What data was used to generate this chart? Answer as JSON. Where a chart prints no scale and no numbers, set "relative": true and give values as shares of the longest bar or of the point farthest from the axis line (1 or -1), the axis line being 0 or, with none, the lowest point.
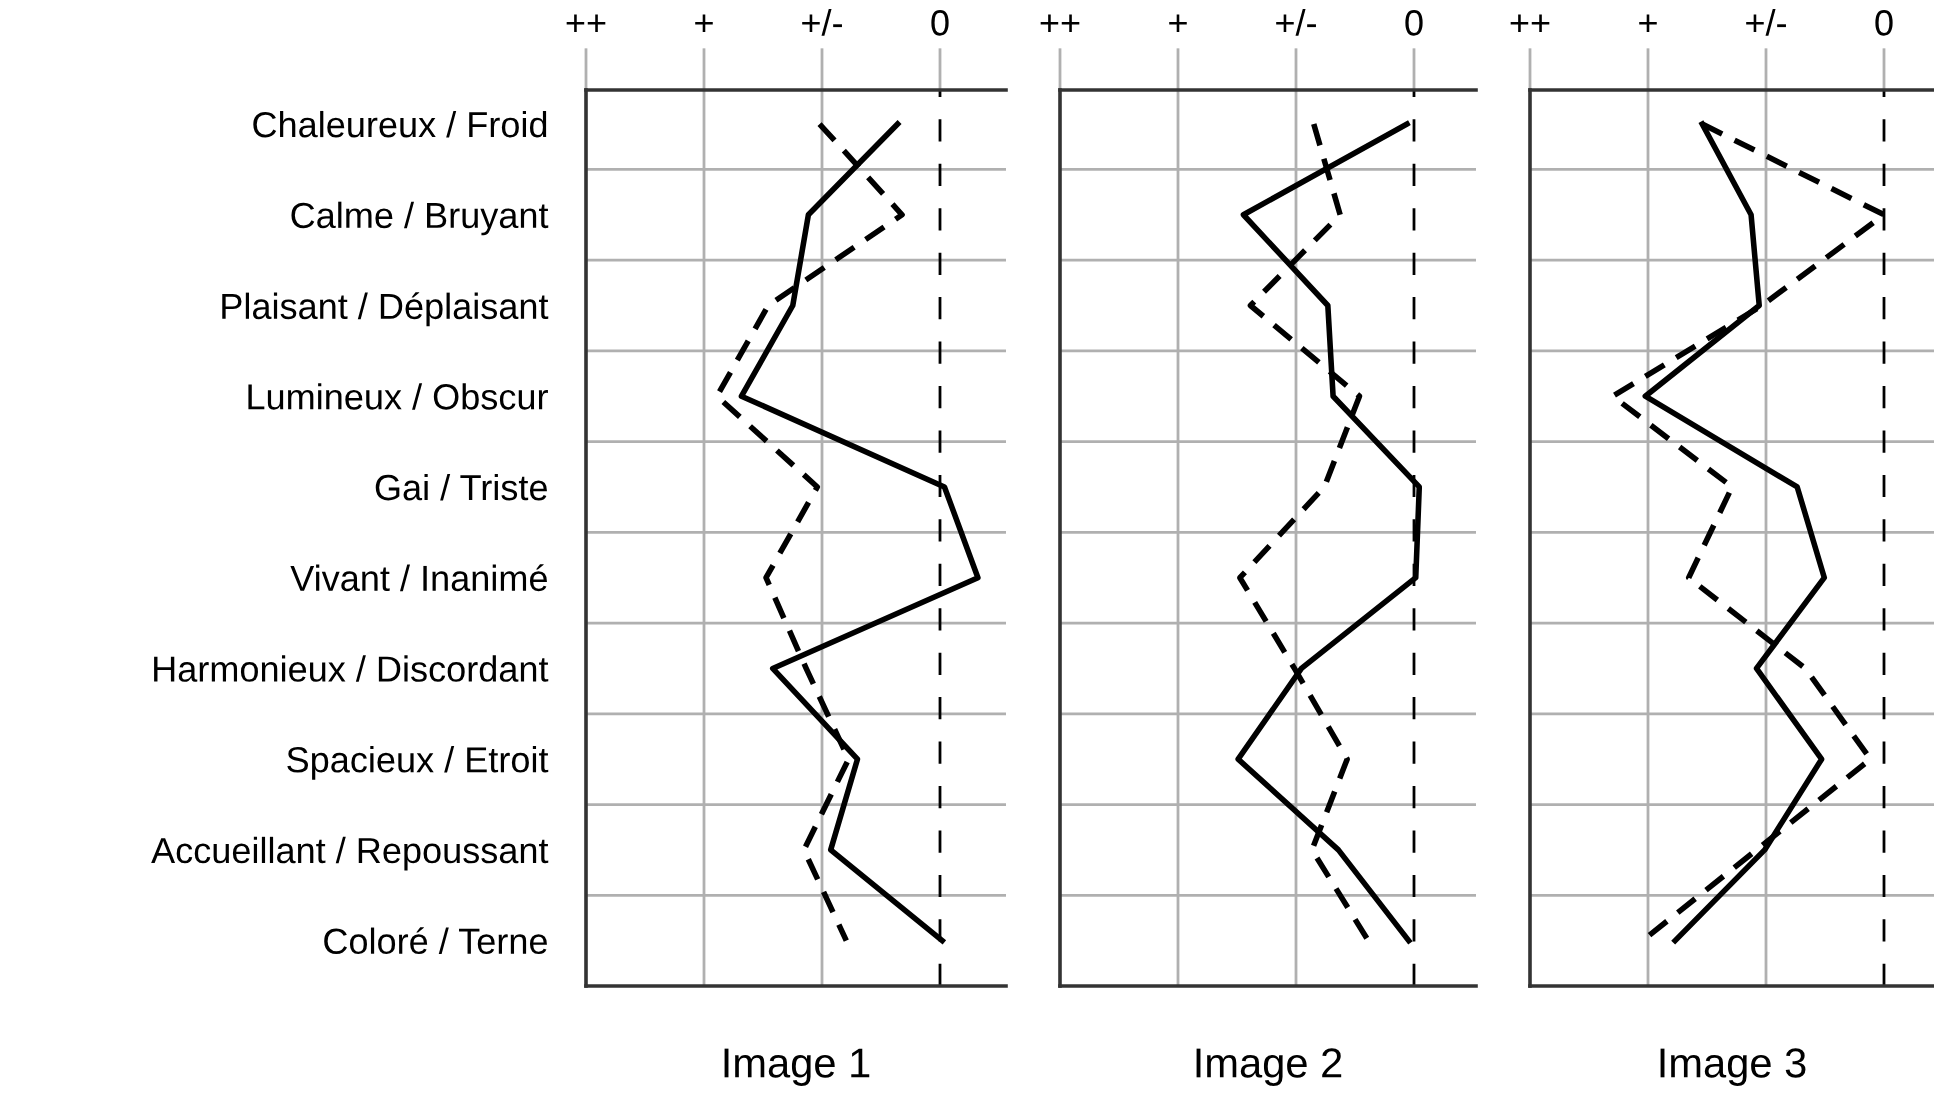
{
  "chart_data": [
    {
      "type": "line",
      "orientation": "horizontal",
      "relative": true,
      "categories": [
        "Chaleureux / Froid",
        "Calme / Bruyant",
        "Plaisant / Déplaisant",
        "Lumineux / Obscur",
        "Gai / Triste",
        "Vivant / Inanimé",
        "Harmonieux / Discordant",
        "Spacieux / Etroit",
        "Accueillant / Repoussant",
        "Coloré / Terne"
      ],
      "tick_labels": "y",
      "annotations": [
        "++",
        "+",
        "+/-",
        "0"
      ],
      "xlabel": "Image 1",
      "grid": true,
      "ref_lines": [
        {
          "axis": "x",
          "value": 0,
          "color": "#000000",
          "line_style": "dashed"
        }
      ],
      "series": [
        {
          "color": "#000000",
          "line_style": "solid",
          "values": [
            -0.19,
            -0.59,
            -0.66,
            -0.89,
            0.02,
            0.17,
            -0.75,
            -0.37,
            -0.49,
            0.01
          ]
        },
        {
          "color": "#000000",
          "line_style": "dashed",
          "values": [
            -0.54,
            -0.17,
            -0.77,
            -1,
            -0.55,
            -0.78,
            -0.6,
            -0.41,
            -0.61,
            -0.42
          ]
        }
      ]
    },
    {
      "type": "line",
      "orientation": "horizontal",
      "relative": true,
      "categories": [
        null,
        null,
        null,
        null,
        null,
        null,
        null,
        null,
        null,
        null
      ],
      "tick_labels": false,
      "annotations": [
        "++",
        "+",
        "+/-",
        "0"
      ],
      "xlabel": "Image 2",
      "grid": true,
      "ref_lines": [
        {
          "axis": "x",
          "value": 0,
          "color": "#000000",
          "line_style": "dashed"
        }
      ],
      "series": [
        {
          "color": "#000000",
          "line_style": "solid",
          "values": [
            -0.04,
            -0.97,
            -0.49,
            -0.46,
            0.03,
            0.01,
            -0.64,
            -1,
            -0.43,
            -0.03
          ]
        },
        {
          "color": "#000000",
          "line_style": "dashed",
          "values": [
            -0.57,
            -0.42,
            -0.93,
            -0.31,
            -0.51,
            -0.99,
            -0.68,
            -0.38,
            -0.58,
            -0.26
          ]
        }
      ]
    },
    {
      "type": "line",
      "orientation": "horizontal",
      "relative": true,
      "categories": [
        null,
        null,
        null,
        null,
        null,
        null,
        null,
        null,
        null,
        null
      ],
      "tick_labels": false,
      "annotations": [
        "++",
        "+",
        "+/-",
        "0"
      ],
      "xlabel": "Image 3",
      "grid": true,
      "ref_lines": [
        {
          "axis": "x",
          "value": 0,
          "color": "#000000",
          "line_style": "dashed"
        }
      ],
      "series": [
        {
          "color": "#000000",
          "line_style": "solid",
          "values": [
            -0.67,
            -0.49,
            -0.46,
            -0.88,
            -0.32,
            -0.22,
            -0.47,
            -0.23,
            -0.44,
            -0.77
          ]
        },
        {
          "color": "#000000",
          "line_style": "dashed",
          "values": [
            -0.67,
            0,
            -0.45,
            -1,
            -0.56,
            -0.72,
            -0.29,
            -0.05,
            -0.47,
            -0.89
          ]
        }
      ]
    }
  ]
}
